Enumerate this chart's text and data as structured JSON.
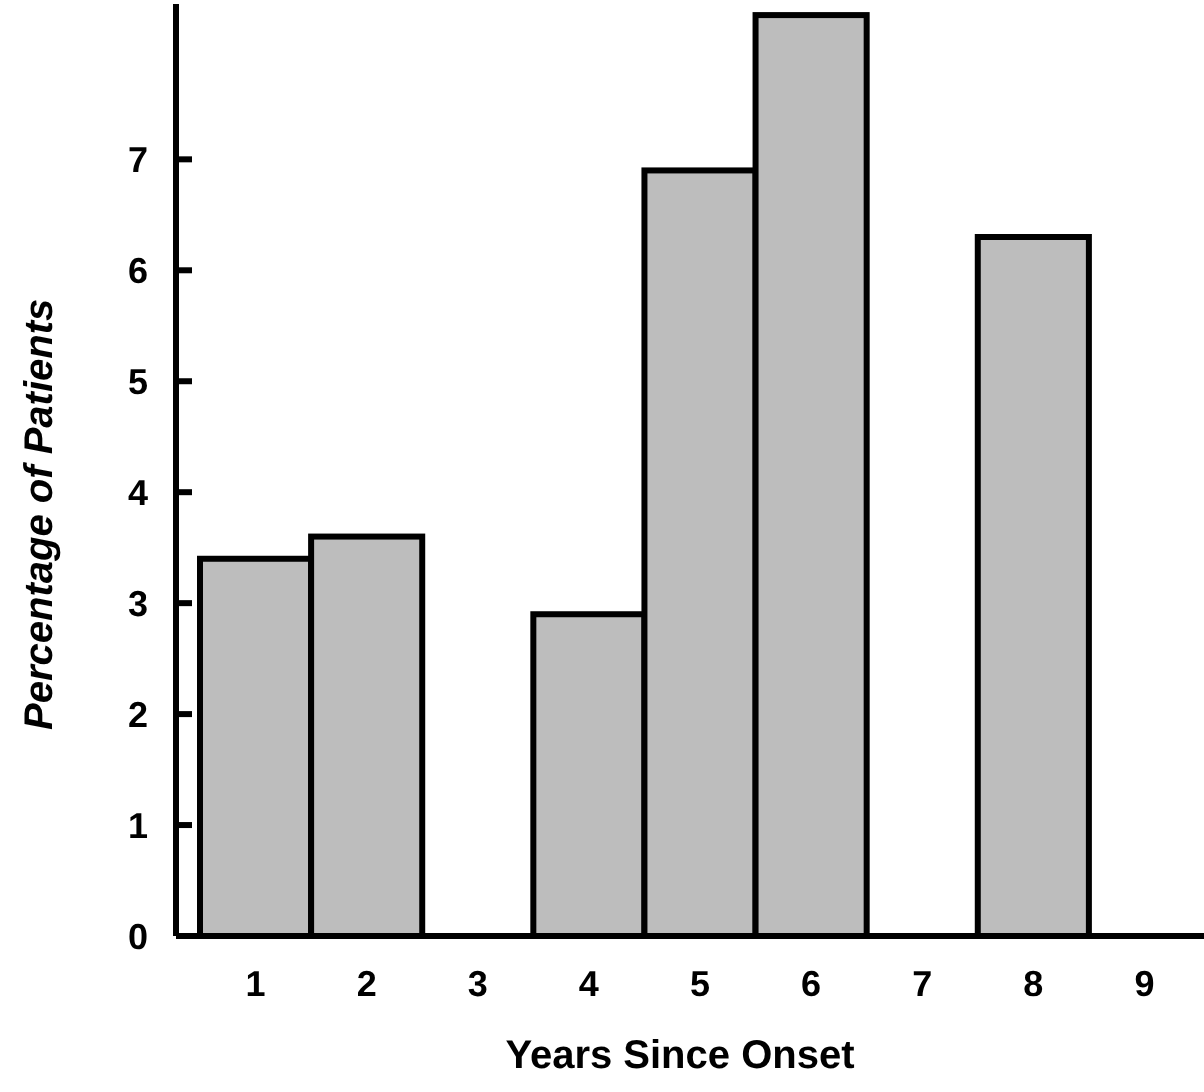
{
  "chart_data": {
    "type": "bar",
    "xlabel": "Years Since Onset",
    "ylabel": "Percentage of Patients",
    "categories": [
      "1",
      "2",
      "3",
      "4",
      "5",
      "6",
      "7",
      "8",
      "9"
    ],
    "values": [
      3.4,
      3.6,
      0,
      2.9,
      6.9,
      8.3,
      0,
      6.3,
      0
    ],
    "color": "#bdbdbd",
    "ylim": [
      0,
      8.4
    ],
    "yticks": [
      0,
      1,
      2,
      3,
      4,
      5,
      6,
      7
    ],
    "grid": false
  }
}
